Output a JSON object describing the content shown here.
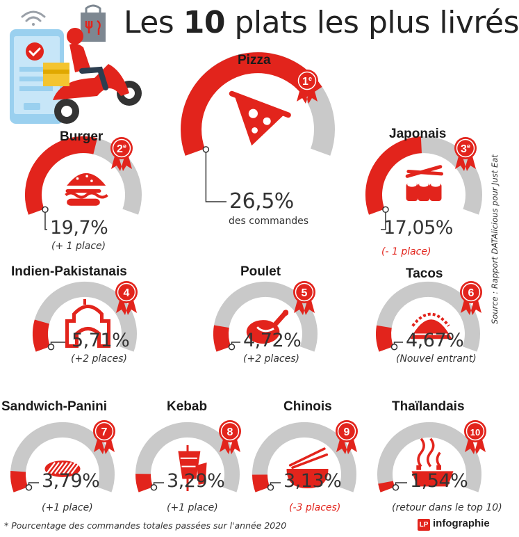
{
  "title": {
    "prefix": "Les ",
    "bold": "10",
    "suffix": " plats les plus livrés"
  },
  "colors": {
    "accent": "#e2241c",
    "arc_grey": "#c9c9c9",
    "text": "#333333"
  },
  "chart_data": {
    "type": "gauge",
    "title": "Les 10 plats les plus livrés",
    "unit": "%",
    "items": [
      {
        "rank": 1,
        "rank_label": "1",
        "rank_suffix": "e",
        "name": "Pizza",
        "value": 26.5,
        "value_label": "26,5%",
        "change": "des commandes",
        "change_trend": "none",
        "icon": "pizza-icon"
      },
      {
        "rank": 2,
        "rank_label": "2",
        "rank_suffix": "e",
        "name": "Burger",
        "value": 19.7,
        "value_label": "19,7%",
        "change": "(+ 1 place)",
        "change_trend": "up",
        "icon": "burger-icon"
      },
      {
        "rank": 3,
        "rank_label": "3",
        "rank_suffix": "e",
        "name": "Japonais",
        "value": 17.05,
        "value_label": "17,05%",
        "change": "(- 1 place)",
        "change_trend": "down",
        "icon": "sushi-icon"
      },
      {
        "rank": 4,
        "rank_label": "4",
        "rank_suffix": "",
        "name": "Indien-Pakistanais",
        "value": 5.71,
        "value_label": "5,71%",
        "change": "(+2 places)",
        "change_trend": "up",
        "icon": "temple-icon"
      },
      {
        "rank": 5,
        "rank_label": "5",
        "rank_suffix": "",
        "name": "Poulet",
        "value": 4.72,
        "value_label": "4,72%",
        "change": "(+2 places)",
        "change_trend": "up",
        "icon": "roast-chicken-icon"
      },
      {
        "rank": 6,
        "rank_label": "6",
        "rank_suffix": "",
        "name": "Tacos",
        "value": 4.67,
        "value_label": "4,67%",
        "change": "(Nouvel entrant)",
        "change_trend": "new",
        "icon": "taco-icon"
      },
      {
        "rank": 7,
        "rank_label": "7",
        "rank_suffix": "",
        "name": "Sandwich-Panini",
        "value": 3.79,
        "value_label": "3,79%",
        "change": "(+1 place)",
        "change_trend": "up",
        "icon": "panini-icon"
      },
      {
        "rank": 8,
        "rank_label": "8",
        "rank_suffix": "",
        "name": "Kebab",
        "value": 3.29,
        "value_label": "3,29%",
        "change": "(+1 place)",
        "change_trend": "up",
        "icon": "kebab-icon"
      },
      {
        "rank": 9,
        "rank_label": "9",
        "rank_suffix": "",
        "name": "Chinois",
        "value": 3.13,
        "value_label": "3,13%",
        "change": "(-3 places)",
        "change_trend": "down",
        "icon": "noodle-bowl-icon"
      },
      {
        "rank": 10,
        "rank_label": "10",
        "rank_suffix": "",
        "name": "Thaïlandais",
        "value": 1.54,
        "value_label": "1,54%",
        "change": "(retour dans le top 10)",
        "change_trend": "up",
        "icon": "thai-dish-icon"
      }
    ]
  },
  "footnote": "* Pourcentage des commandes totales passées sur l'année 2020",
  "source": "Source : Rapport DATAlicious pour Just Eat",
  "brand": {
    "logo": "LP",
    "text": "infographie"
  }
}
